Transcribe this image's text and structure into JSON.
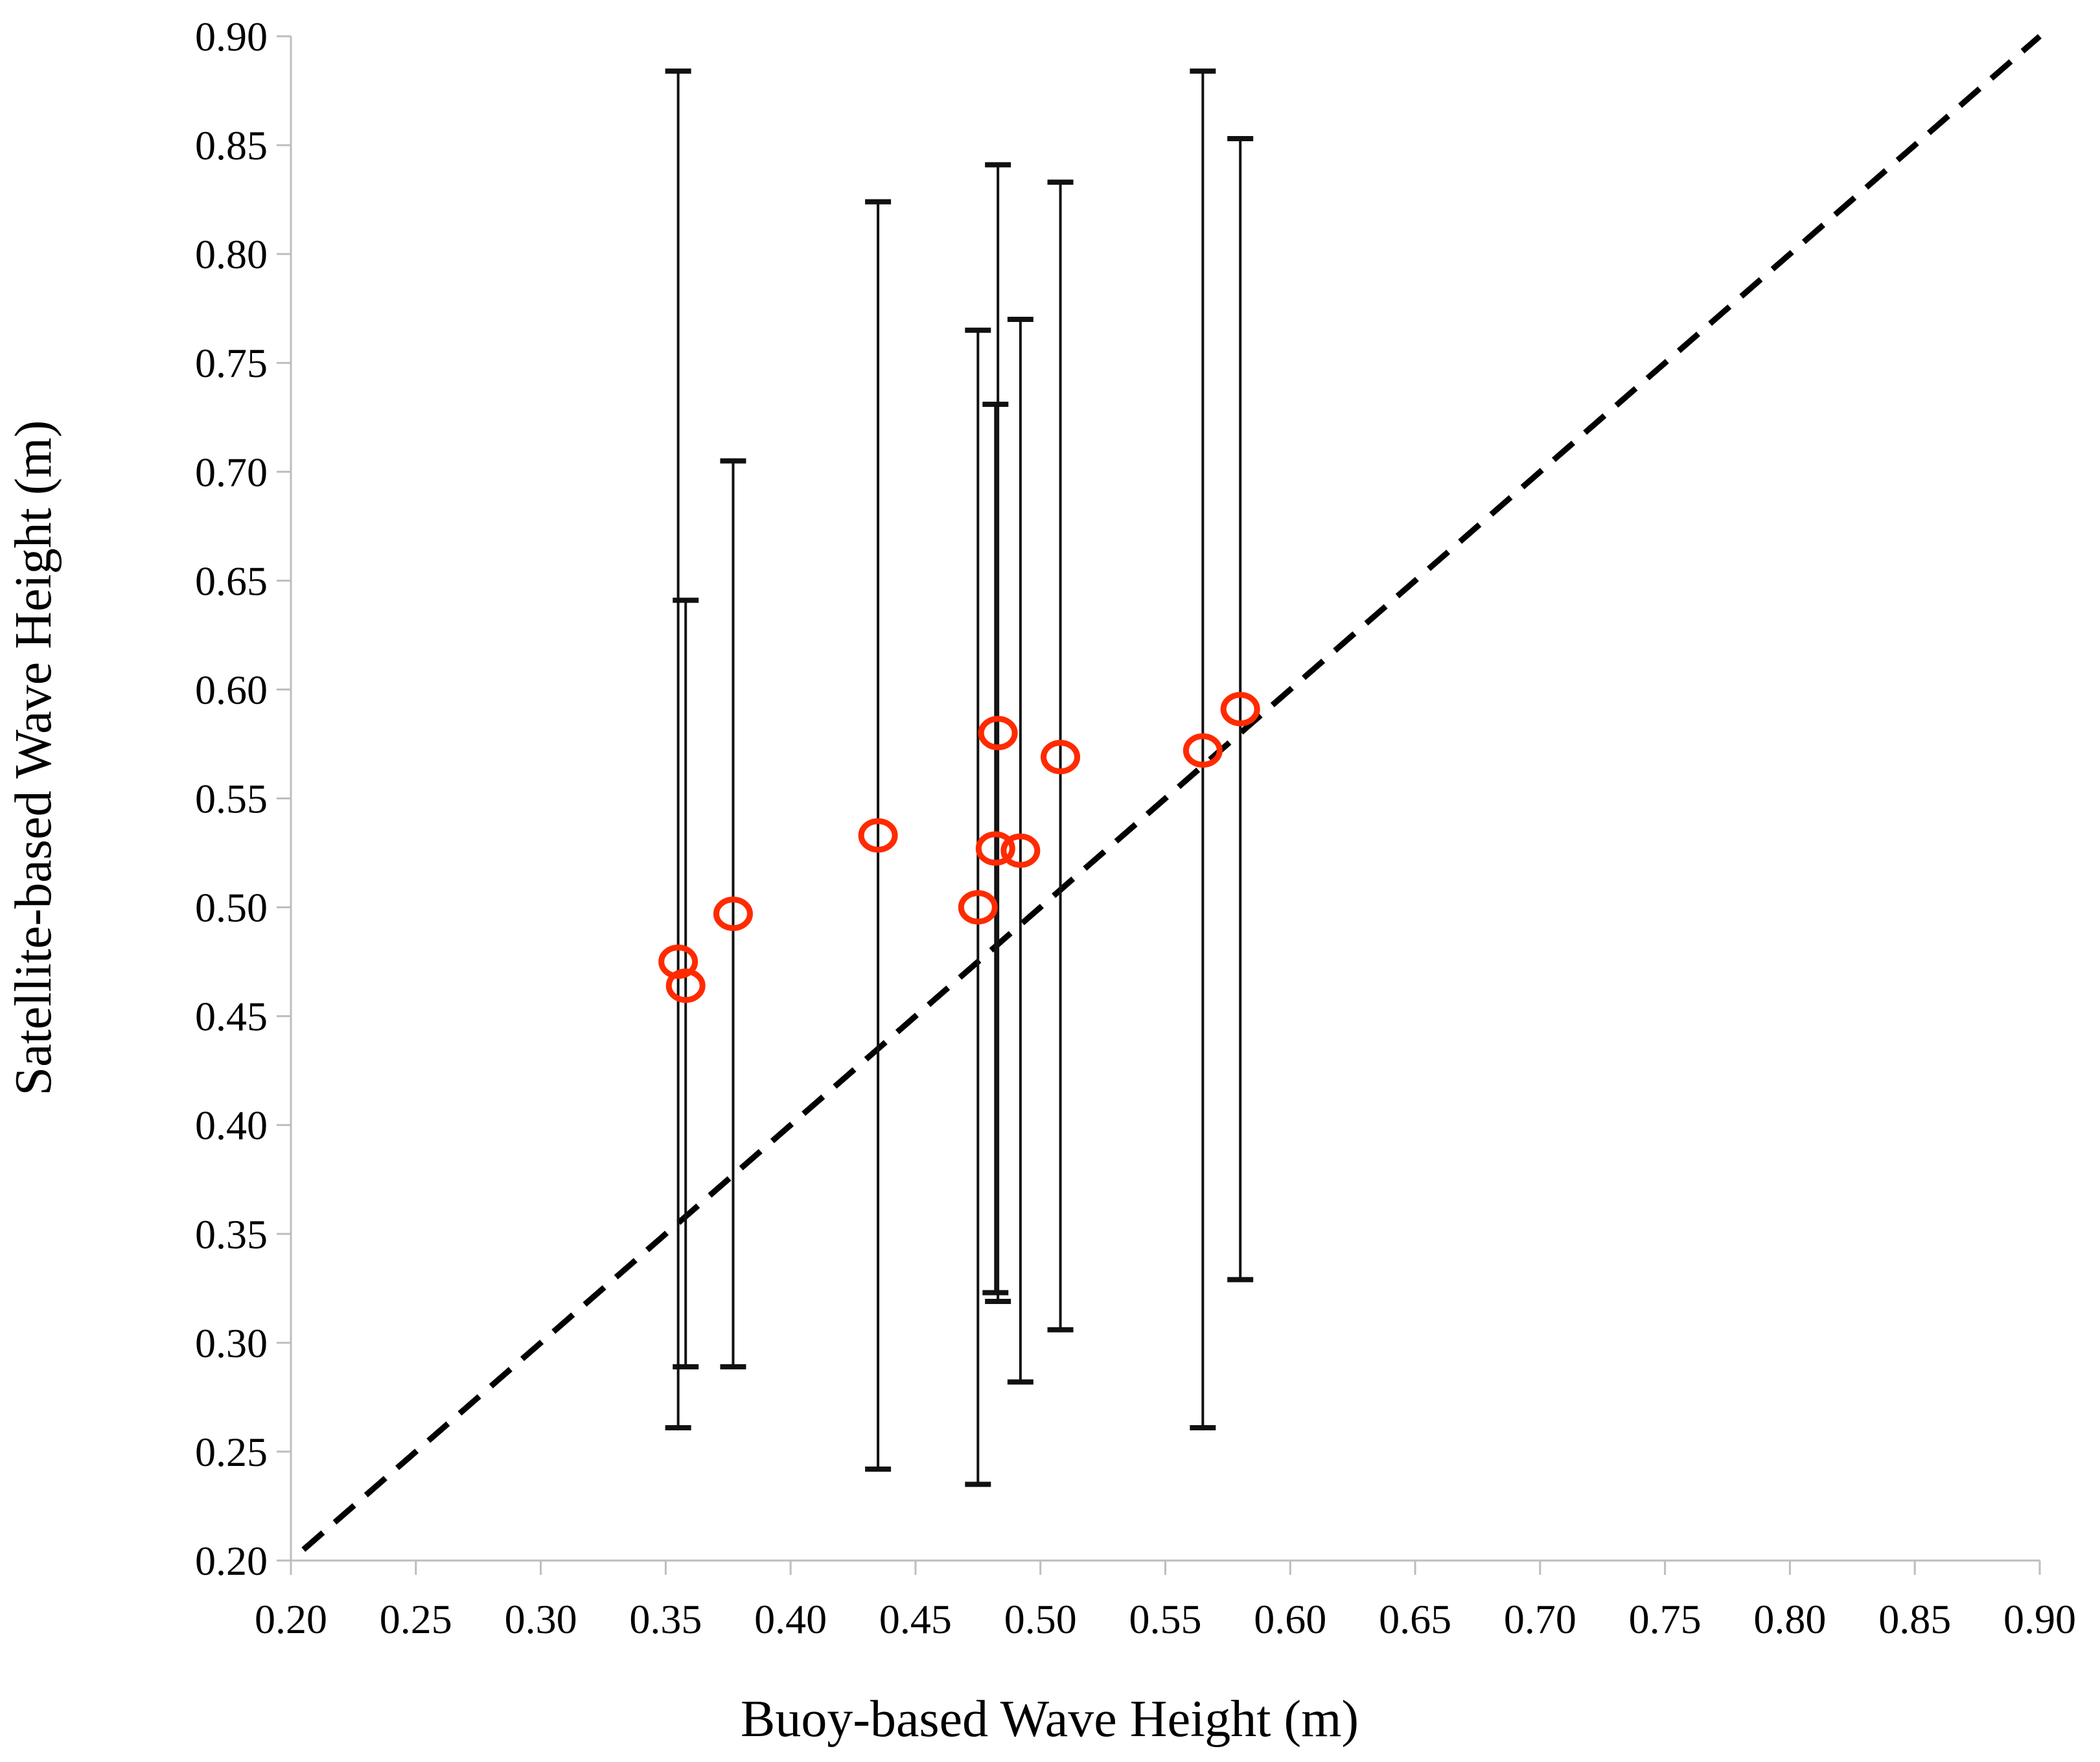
{
  "chart_data": {
    "type": "scatter",
    "title": "",
    "xlabel": "Buoy-based Wave Height (m)",
    "ylabel": "Satellite-based Wave Height (m)",
    "xlim": [
      0.2,
      0.9
    ],
    "ylim": [
      0.2,
      0.9
    ],
    "xticks": [
      "0.20",
      "0.25",
      "0.30",
      "0.35",
      "0.40",
      "0.45",
      "0.50",
      "0.55",
      "0.60",
      "0.65",
      "0.70",
      "0.75",
      "0.80",
      "0.85",
      "0.90"
    ],
    "yticks": [
      "0.20",
      "0.25",
      "0.30",
      "0.35",
      "0.40",
      "0.45",
      "0.50",
      "0.55",
      "0.60",
      "0.65",
      "0.70",
      "0.75",
      "0.80",
      "0.85",
      "0.90"
    ],
    "grid": false,
    "reference_line": {
      "style": "dashed",
      "color": "#000000",
      "from": [
        0.205,
        0.205
      ],
      "to": [
        0.9,
        0.9
      ]
    },
    "marker_color": "#ff2a00",
    "points": [
      {
        "x": 0.355,
        "y": 0.475,
        "err_low": 0.261,
        "err_high": 0.884
      },
      {
        "x": 0.358,
        "y": 0.464,
        "err_low": 0.289,
        "err_high": 0.641
      },
      {
        "x": 0.377,
        "y": 0.497,
        "err_low": 0.289,
        "err_high": 0.705
      },
      {
        "x": 0.435,
        "y": 0.533,
        "err_low": 0.242,
        "err_high": 0.824
      },
      {
        "x": 0.475,
        "y": 0.5,
        "err_low": 0.235,
        "err_high": 0.765
      },
      {
        "x": 0.482,
        "y": 0.527,
        "err_low": 0.323,
        "err_high": 0.731
      },
      {
        "x": 0.483,
        "y": 0.58,
        "err_low": 0.319,
        "err_high": 0.841
      },
      {
        "x": 0.492,
        "y": 0.526,
        "err_low": 0.282,
        "err_high": 0.77
      },
      {
        "x": 0.508,
        "y": 0.569,
        "err_low": 0.306,
        "err_high": 0.833
      },
      {
        "x": 0.565,
        "y": 0.572,
        "err_low": 0.261,
        "err_high": 0.884
      },
      {
        "x": 0.58,
        "y": 0.591,
        "err_low": 0.329,
        "err_high": 0.853
      }
    ]
  }
}
